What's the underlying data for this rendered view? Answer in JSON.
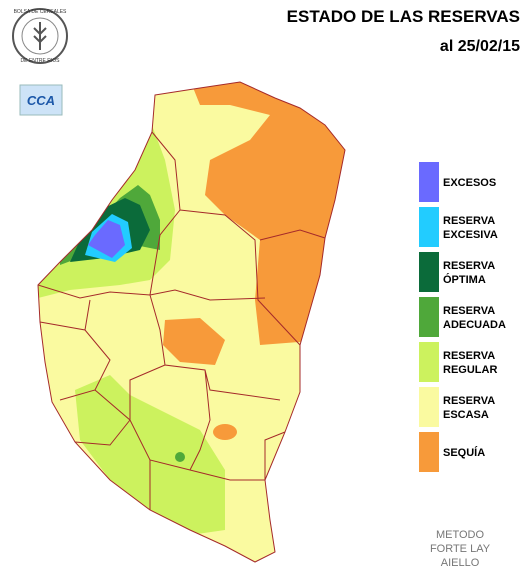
{
  "header": {
    "title": "ESTADO DE LAS RESERVAS",
    "date": "al 25/02/15",
    "logo_text": [
      "BOLSA DE CEREALES",
      "DE ENTRE RIOS"
    ],
    "badge": "CCA"
  },
  "legend": [
    {
      "lines": [
        "EXCESOS"
      ],
      "color": "#6a6aff"
    },
    {
      "lines": [
        "RESERVA",
        "EXCESIVA"
      ],
      "color": "#22ccff"
    },
    {
      "lines": [
        "RESERVA",
        "ÓPTIMA"
      ],
      "color": "#0b6b3a"
    },
    {
      "lines": [
        "RESERVA",
        "ADECUADA"
      ],
      "color": "#4fa83a"
    },
    {
      "lines": [
        "RESERVA",
        "REGULAR"
      ],
      "color": "#ccf25e"
    },
    {
      "lines": [
        "RESERVA",
        "ESCASA"
      ],
      "color": "#fafaa0"
    },
    {
      "lines": [
        "SEQUÍA"
      ],
      "color": "#f79a3a"
    }
  ],
  "footer": [
    "METODO",
    "FORTE LAY",
    "AIELLO"
  ]
}
